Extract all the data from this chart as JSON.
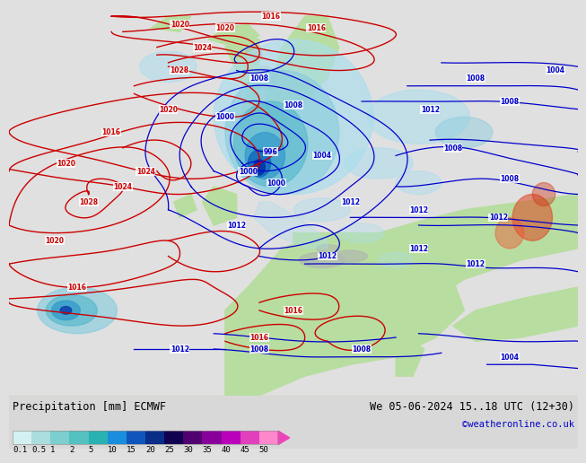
{
  "title_left": "Precipitation [mm] ECMWF",
  "title_right": "We 05-06-2024 15..18 UTC (12+30)",
  "copyright": "©weatheronline.co.uk",
  "colorbar_values": [
    "0.1",
    "0.5",
    "1",
    "2",
    "5",
    "10",
    "15",
    "20",
    "25",
    "30",
    "35",
    "40",
    "45",
    "50"
  ],
  "colorbar_colors": [
    "#d4f0f0",
    "#aadddd",
    "#7dcece",
    "#55c0c0",
    "#2ab2b2",
    "#1a8edd",
    "#1055bb",
    "#0a2d88",
    "#120050",
    "#500070",
    "#880099",
    "#bb00bb",
    "#e040bb",
    "#ff88cc"
  ],
  "arrow_color": "#ee44bb",
  "map_ocean_color": "#e8e8ec",
  "map_land_color": "#b8dda0",
  "map_gray_color": "#c0c0c0",
  "label_fontsize": 9,
  "tick_fontsize": 7.5,
  "fig_bg": "#e0e0e0"
}
